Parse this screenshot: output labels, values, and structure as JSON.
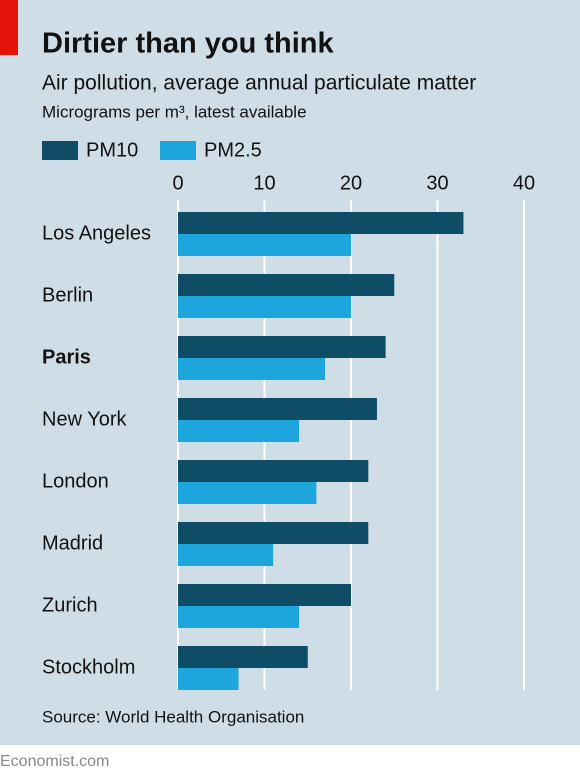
{
  "chart_data": {
    "type": "bar",
    "orientation": "horizontal",
    "title": "Dirtier than you think",
    "subtitle": "Air pollution, average annual particulate matter",
    "unit_note": "Micrograms per m³, latest available",
    "source": "Source: World Health Organisation",
    "footer": "Economist.com",
    "categories": [
      "Los Angeles",
      "Berlin",
      "Paris",
      "New York",
      "London",
      "Madrid",
      "Zurich",
      "Stockholm"
    ],
    "bold_category_index": 2,
    "series": [
      {
        "name": "PM10",
        "color": "#0f4c65",
        "values": [
          33,
          25,
          24,
          23,
          22,
          22,
          20,
          15
        ]
      },
      {
        "name": "PM2.5",
        "color": "#1ca6dc",
        "values": [
          20,
          20,
          17,
          14,
          16,
          11,
          14,
          7
        ]
      }
    ],
    "xlim": [
      0,
      40
    ],
    "xticks": [
      0,
      10,
      20,
      30,
      40
    ],
    "grid": true
  }
}
